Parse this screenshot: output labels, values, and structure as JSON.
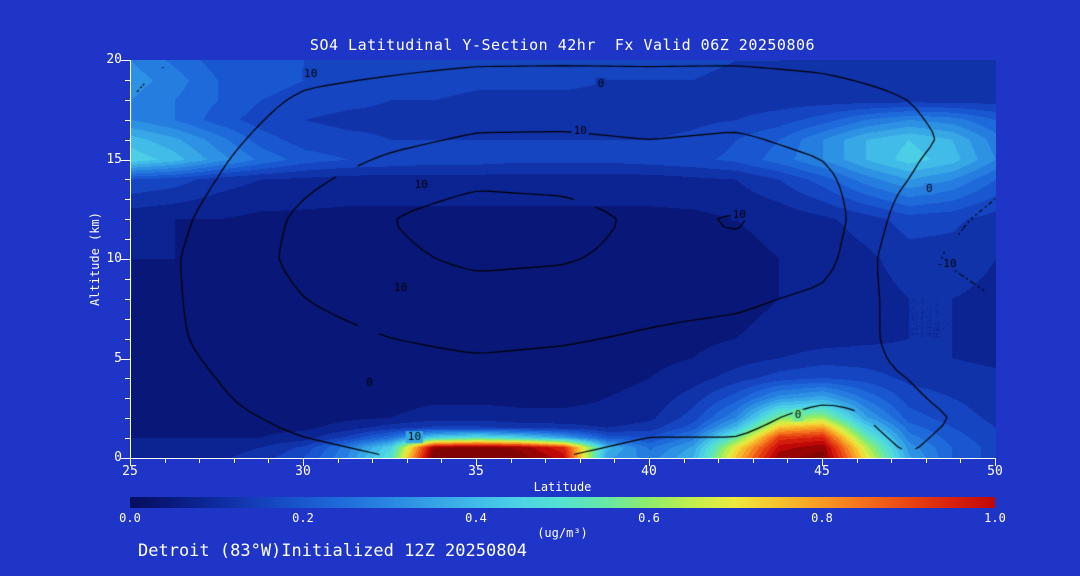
{
  "page": {
    "background": "#1f35c8",
    "text_color": "#ffffff"
  },
  "footer": "Detroit (83°W)Initialized 12Z 20250804",
  "chart_data": {
    "type": "heatmap",
    "title": "SO4 Latitudinal Y-Section 42hr  Fx Valid 06Z 20250806",
    "xlabel": "Latitude",
    "ylabel": "Altitude (km)",
    "xlim": [
      25,
      50
    ],
    "ylim": [
      0,
      20
    ],
    "x_ticks": [
      25,
      30,
      35,
      40,
      45,
      50
    ],
    "y_ticks": [
      0,
      5,
      10,
      15,
      20
    ],
    "axis_color": "#ffffff",
    "contour_color": "#000000",
    "fill_field": {
      "name": "SO4 concentration",
      "units": "ug/m3",
      "lats": [
        25,
        26.25,
        27.5,
        28.75,
        30,
        31.25,
        32.5,
        33.75,
        35,
        36.25,
        37.5,
        38.75,
        40,
        41.25,
        42.5,
        43.75,
        45,
        46.25,
        47.5,
        48.75,
        50
      ],
      "alts": [
        0,
        0.5,
        1,
        1.5,
        2,
        3,
        4,
        5,
        6,
        8,
        10,
        12,
        14,
        15,
        16,
        17,
        18,
        19,
        20
      ],
      "values": [
        [
          0.08,
          0.08,
          0.09,
          0.12,
          0.18,
          0.3,
          0.5,
          1.1,
          1.1,
          1.08,
          1.0,
          0.35,
          0.28,
          0.38,
          0.75,
          1.05,
          1.08,
          0.7,
          0.35,
          0.22,
          0.16
        ],
        [
          0.08,
          0.08,
          0.08,
          0.1,
          0.15,
          0.28,
          0.45,
          1.05,
          1.08,
          1.05,
          0.95,
          0.4,
          0.25,
          0.35,
          0.7,
          1.0,
          1.05,
          0.65,
          0.32,
          0.22,
          0.16
        ],
        [
          0.06,
          0.06,
          0.06,
          0.06,
          0.08,
          0.15,
          0.25,
          0.45,
          0.5,
          0.45,
          0.35,
          0.2,
          0.18,
          0.28,
          0.55,
          0.92,
          0.95,
          0.55,
          0.28,
          0.2,
          0.15
        ],
        [
          0.05,
          0.05,
          0.05,
          0.05,
          0.05,
          0.08,
          0.12,
          0.15,
          0.15,
          0.13,
          0.12,
          0.1,
          0.12,
          0.2,
          0.4,
          0.75,
          0.8,
          0.45,
          0.24,
          0.18,
          0.14
        ],
        [
          0.05,
          0.05,
          0.05,
          0.04,
          0.04,
          0.05,
          0.06,
          0.08,
          0.08,
          0.07,
          0.07,
          0.07,
          0.09,
          0.16,
          0.3,
          0.58,
          0.62,
          0.35,
          0.2,
          0.16,
          0.13
        ],
        [
          0.05,
          0.05,
          0.04,
          0.04,
          0.04,
          0.04,
          0.04,
          0.05,
          0.05,
          0.05,
          0.05,
          0.06,
          0.07,
          0.12,
          0.2,
          0.32,
          0.36,
          0.25,
          0.16,
          0.14,
          0.12
        ],
        [
          0.05,
          0.05,
          0.04,
          0.04,
          0.04,
          0.04,
          0.04,
          0.04,
          0.04,
          0.04,
          0.05,
          0.05,
          0.06,
          0.08,
          0.12,
          0.16,
          0.18,
          0.16,
          0.13,
          0.12,
          0.11
        ],
        [
          0.05,
          0.05,
          0.04,
          0.04,
          0.04,
          0.04,
          0.04,
          0.04,
          0.04,
          0.04,
          0.04,
          0.05,
          0.05,
          0.06,
          0.08,
          0.1,
          0.12,
          0.12,
          0.11,
          0.1,
          0.09
        ],
        [
          0.05,
          0.05,
          0.04,
          0.04,
          0.04,
          0.04,
          0.04,
          0.04,
          0.04,
          0.04,
          0.04,
          0.04,
          0.05,
          0.05,
          0.06,
          0.07,
          0.08,
          0.09,
          0.1,
          0.1,
          0.09
        ],
        [
          0.06,
          0.05,
          0.05,
          0.04,
          0.04,
          0.04,
          0.04,
          0.04,
          0.04,
          0.04,
          0.04,
          0.04,
          0.04,
          0.05,
          0.05,
          0.06,
          0.07,
          0.08,
          0.1,
          0.1,
          0.09
        ],
        [
          0.06,
          0.06,
          0.05,
          0.05,
          0.05,
          0.04,
          0.04,
          0.04,
          0.04,
          0.04,
          0.04,
          0.04,
          0.05,
          0.05,
          0.05,
          0.06,
          0.07,
          0.09,
          0.12,
          0.12,
          0.1
        ],
        [
          0.07,
          0.06,
          0.06,
          0.05,
          0.05,
          0.05,
          0.05,
          0.05,
          0.05,
          0.05,
          0.05,
          0.05,
          0.05,
          0.05,
          0.06,
          0.07,
          0.09,
          0.12,
          0.16,
          0.15,
          0.12
        ],
        [
          0.18,
          0.16,
          0.12,
          0.1,
          0.09,
          0.08,
          0.08,
          0.08,
          0.08,
          0.08,
          0.08,
          0.08,
          0.08,
          0.09,
          0.1,
          0.14,
          0.2,
          0.28,
          0.34,
          0.3,
          0.22
        ],
        [
          0.45,
          0.4,
          0.32,
          0.25,
          0.2,
          0.18,
          0.17,
          0.16,
          0.16,
          0.15,
          0.15,
          0.15,
          0.16,
          0.17,
          0.19,
          0.24,
          0.3,
          0.38,
          0.44,
          0.4,
          0.3
        ],
        [
          0.4,
          0.35,
          0.28,
          0.2,
          0.16,
          0.15,
          0.14,
          0.14,
          0.14,
          0.14,
          0.14,
          0.14,
          0.14,
          0.15,
          0.18,
          0.22,
          0.3,
          0.38,
          0.42,
          0.38,
          0.28
        ],
        [
          0.3,
          0.26,
          0.2,
          0.16,
          0.14,
          0.13,
          0.13,
          0.12,
          0.12,
          0.12,
          0.12,
          0.12,
          0.12,
          0.13,
          0.14,
          0.16,
          0.2,
          0.26,
          0.3,
          0.28,
          0.22
        ],
        [
          0.3,
          0.26,
          0.22,
          0.18,
          0.16,
          0.15,
          0.14,
          0.14,
          0.13,
          0.13,
          0.13,
          0.13,
          0.13,
          0.13,
          0.12,
          0.12,
          0.12,
          0.12,
          0.12,
          0.12,
          0.12
        ],
        [
          0.32,
          0.28,
          0.22,
          0.2,
          0.18,
          0.17,
          0.16,
          0.16,
          0.15,
          0.15,
          0.15,
          0.14,
          0.14,
          0.14,
          0.13,
          0.13,
          0.13,
          0.12,
          0.12,
          0.12,
          0.12
        ],
        [
          0.3,
          0.25,
          0.2,
          0.18,
          0.18,
          0.17,
          0.17,
          0.16,
          0.16,
          0.15,
          0.15,
          0.15,
          0.15,
          0.15,
          0.14,
          0.14,
          0.13,
          0.13,
          0.12,
          0.12,
          0.12
        ]
      ]
    },
    "overlay_field": {
      "name": "overlaid contour field",
      "levels_solid": [
        0,
        10,
        20
      ],
      "levels_dotted": [
        -10
      ],
      "lats": [
        25,
        27.5,
        30,
        32.5,
        35,
        37.5,
        40,
        42.5,
        45,
        47.5,
        50
      ],
      "alts": [
        0,
        2,
        4,
        6,
        8,
        10,
        12,
        14,
        16,
        18,
        20
      ],
      "values": [
        [
          -3,
          -2,
          -1,
          0,
          0,
          0,
          -1,
          -1,
          -2,
          0,
          -2
        ],
        [
          -2,
          -1,
          1,
          2,
          2,
          2,
          1,
          1,
          -1,
          1,
          -1
        ],
        [
          -2,
          0,
          4,
          6,
          7,
          6,
          5,
          3,
          2,
          0,
          -3
        ],
        [
          -2,
          1,
          7,
          10,
          12,
          11,
          9,
          7,
          4,
          -2,
          -6
        ],
        [
          -3,
          2,
          10,
          14,
          16,
          15,
          13,
          12,
          8,
          -4,
          -10
        ],
        [
          -4,
          3,
          13,
          18,
          22,
          21,
          17,
          18,
          14,
          -8,
          -14
        ],
        [
          -5,
          2,
          12,
          20,
          25,
          24,
          18,
          21,
          16,
          -5,
          -12
        ],
        [
          -6,
          0,
          8,
          14,
          18,
          17,
          14,
          15,
          12,
          0,
          -8
        ],
        [
          -8,
          -2,
          4,
          8,
          11,
          11,
          10,
          11,
          8,
          2,
          -4
        ],
        [
          -10,
          -4,
          1,
          3,
          5,
          6,
          5,
          6,
          4,
          0,
          -5
        ],
        [
          -12,
          -8,
          -3,
          -2,
          -1,
          -1,
          -1,
          -1,
          -2,
          -4,
          -8
        ]
      ]
    },
    "contour_labels": [
      {
        "text": "10",
        "lat": 30.2,
        "alt": 19.3
      },
      {
        "text": "0",
        "lat": 38.6,
        "alt": 18.8
      },
      {
        "text": "10",
        "lat": 38.0,
        "alt": 16.4
      },
      {
        "text": "10",
        "lat": 33.4,
        "alt": 13.7
      },
      {
        "text": "10",
        "lat": 42.6,
        "alt": 12.2
      },
      {
        "text": "-10",
        "lat": 48.6,
        "alt": 9.7
      },
      {
        "text": "0",
        "lat": 48.1,
        "alt": 13.5
      },
      {
        "text": "10",
        "lat": 32.8,
        "alt": 8.5
      },
      {
        "text": "0",
        "lat": 31.9,
        "alt": 3.7
      },
      {
        "text": "0",
        "lat": 44.3,
        "alt": 2.1
      },
      {
        "text": "10",
        "lat": 33.2,
        "alt": 1.0
      }
    ],
    "colormap": {
      "stops": [
        [
          0.0,
          "#060e5e"
        ],
        [
          0.04,
          "#091878"
        ],
        [
          0.08,
          "#0c2492"
        ],
        [
          0.12,
          "#1133aa"
        ],
        [
          0.16,
          "#1545c0"
        ],
        [
          0.2,
          "#1957d0"
        ],
        [
          0.25,
          "#206fdc"
        ],
        [
          0.3,
          "#2a87e2"
        ],
        [
          0.35,
          "#35a2e6"
        ],
        [
          0.4,
          "#41bce8"
        ],
        [
          0.45,
          "#4dd2e6"
        ],
        [
          0.5,
          "#55e2d0"
        ],
        [
          0.55,
          "#68e8a6"
        ],
        [
          0.6,
          "#8fec6a"
        ],
        [
          0.65,
          "#c2ee4e"
        ],
        [
          0.7,
          "#eeea3e"
        ],
        [
          0.75,
          "#f6c32e"
        ],
        [
          0.8,
          "#f79b24"
        ],
        [
          0.85,
          "#f4701c"
        ],
        [
          0.9,
          "#e94514"
        ],
        [
          0.95,
          "#d9220e"
        ],
        [
          1.0,
          "#bf0808"
        ],
        [
          1.04,
          "#960404"
        ],
        [
          1.12,
          "#6e0202"
        ]
      ]
    },
    "colorbar": {
      "ticks": [
        "0.0",
        "0.2",
        "0.4",
        "0.6",
        "0.8",
        "1.0"
      ],
      "label": "(ug/m³)"
    }
  }
}
